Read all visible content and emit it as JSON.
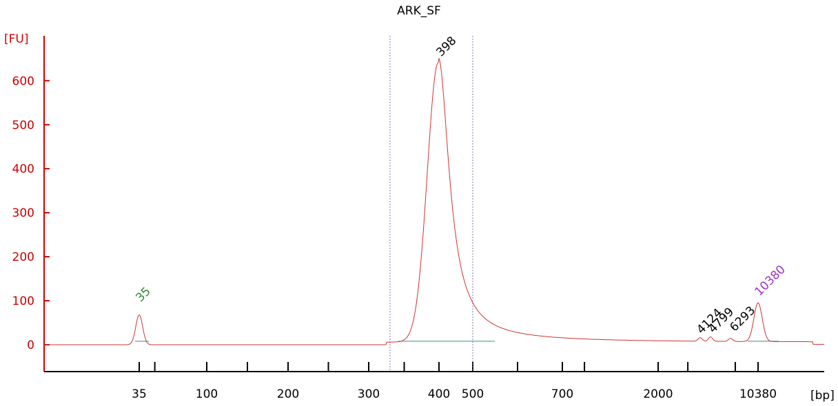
{
  "chart_data": {
    "type": "line",
    "title": "ARK_SF",
    "ylabel": "[FU]",
    "xlabel": "[bp]",
    "ylim": [
      -60,
      700
    ],
    "y_ticks": [
      0,
      100,
      200,
      300,
      400,
      500,
      600
    ],
    "x_scale": "ladder (electropherogram, non-linear)",
    "x_tick_labels": [
      "35",
      "100",
      "200",
      "300",
      "400",
      "500",
      "700",
      "2000",
      "10380"
    ],
    "grid": false,
    "colors": {
      "axis": "#cc0000",
      "trace": "#cc3333",
      "baseline": "#3a8a8a",
      "region": "#7777cc",
      "lower_marker": "#2a8a2a",
      "upper_marker": "#9933cc",
      "main_peak": "#000000"
    },
    "series": [
      {
        "values": [
          {
            "bp": 35,
            "fu": 68
          },
          {
            "bp": 398,
            "fu": 635
          },
          {
            "bp": 4124,
            "fu": 8
          },
          {
            "bp": 4799,
            "fu": 10
          },
          {
            "bp": 6293,
            "fu": 7
          },
          {
            "bp": 10380,
            "fu": 88
          }
        ]
      }
    ],
    "peak_labels": [
      {
        "text": "35",
        "bp": 35,
        "fu": 68,
        "role": "lower_marker"
      },
      {
        "text": "398",
        "bp": 398,
        "fu": 635,
        "role": "main_peak"
      },
      {
        "text": "4124",
        "bp": 4124,
        "fu": 8,
        "role": "minor"
      },
      {
        "text": "4799",
        "bp": 4799,
        "fu": 10,
        "role": "minor"
      },
      {
        "text": "6293",
        "bp": 6293,
        "fu": 7,
        "role": "minor"
      },
      {
        "text": "10380",
        "bp": 10380,
        "fu": 88,
        "role": "upper_marker"
      }
    ],
    "region": {
      "from_bp": 330,
      "to_bp": 500
    }
  }
}
